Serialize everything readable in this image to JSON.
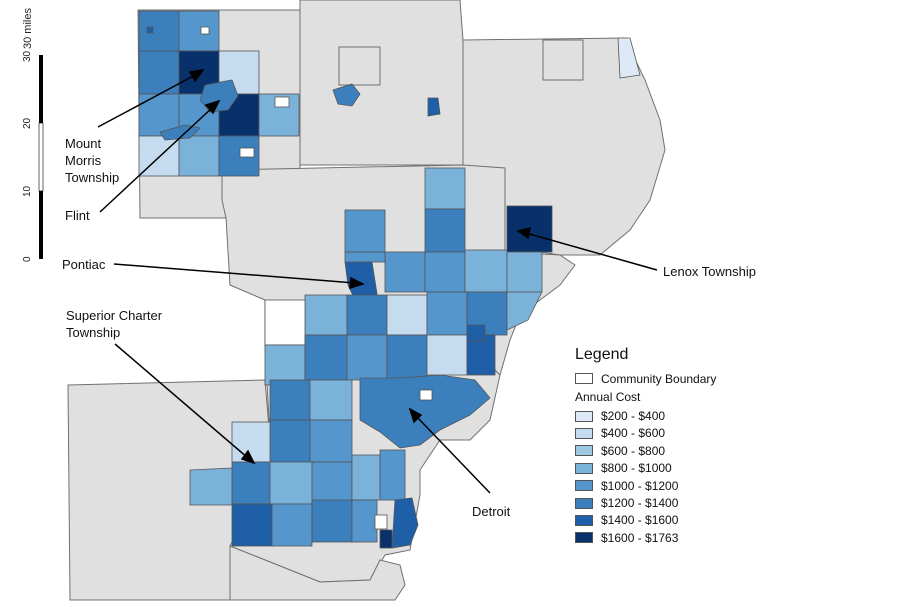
{
  "legend": {
    "title": "Legend",
    "boundary_label": "Community Boundary",
    "subtitle": "Annual Cost",
    "classes": [
      {
        "label": "$200 - $400",
        "color": "#dde9f6"
      },
      {
        "label": "$400 - $600",
        "color": "#c5dbef"
      },
      {
        "label": "$600 - $800",
        "color": "#9ecae1"
      },
      {
        "label": "$800 - $1000",
        "color": "#7bb2da"
      },
      {
        "label": "$1000 - $1200",
        "color": "#5596cc"
      },
      {
        "label": "$1200 - $1400",
        "color": "#3b7fbd"
      },
      {
        "label": "$1400 - $1600",
        "color": "#1f5fa8"
      },
      {
        "label": "$1600 - $1763",
        "color": "#08306b"
      }
    ]
  },
  "scale_bar": {
    "unit_label": "30 miles",
    "ticks": [
      "0",
      "10",
      "20",
      "30"
    ]
  },
  "annotations": {
    "mount_morris": "Mount\nMorris\nTownship",
    "flint": "Flint",
    "pontiac": "Pontiac",
    "superior": "Superior Charter\nTownship",
    "lenox": "Lenox Township",
    "detroit": "Detroit"
  },
  "colors": {
    "county_fill": "#e0e0e0",
    "county_stroke": "#707070",
    "boundary_fill": "#ffffff"
  }
}
